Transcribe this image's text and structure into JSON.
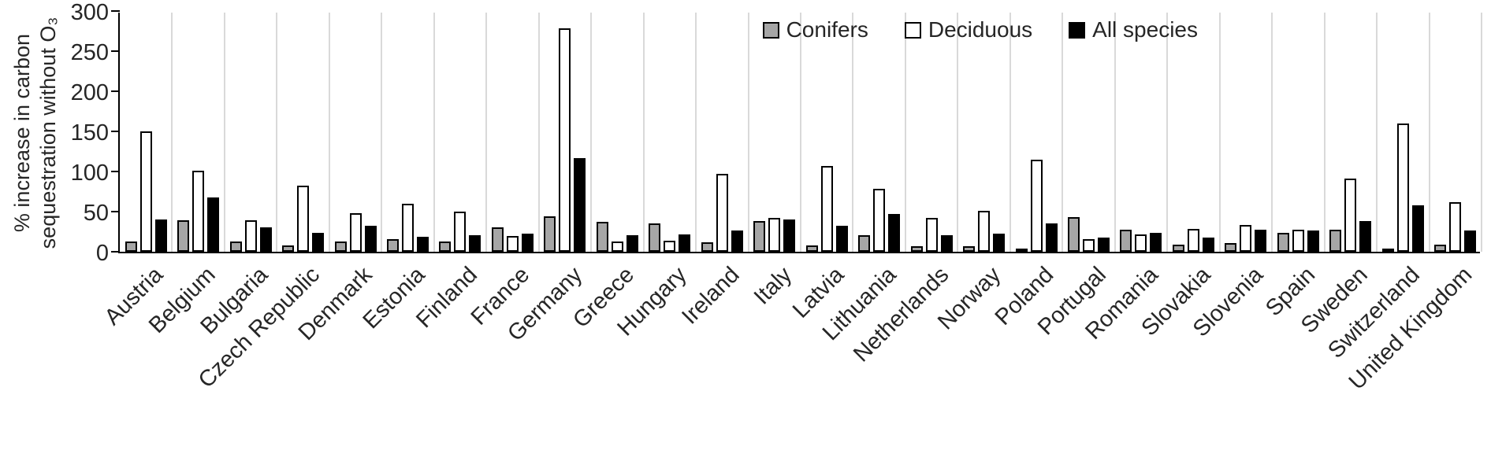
{
  "chart_data": {
    "type": "bar",
    "title": "",
    "ylabel": "% increase in carbon sequestration without O₃",
    "xlabel": "",
    "ylim": [
      0,
      300
    ],
    "yticks": [
      0,
      50,
      100,
      150,
      200,
      250,
      300
    ],
    "grid": "vertical separators between categories",
    "legend_position": "top-right",
    "axis_color": "#000000",
    "gridline_color": "#d9d9d9",
    "text_color": "#262626",
    "categories": [
      "Austria",
      "Belgium",
      "Bulgaria",
      "Czech Republic",
      "Denmark",
      "Estonia",
      "Finland",
      "France",
      "Germany",
      "Greece",
      "Hungary",
      "Ireland",
      "Italy",
      "Latvia",
      "Lithuania",
      "Netherlands",
      "Norway",
      "Poland",
      "Portugal",
      "Romania",
      "Slovakia",
      "Slovenia",
      "Spain",
      "Sweden",
      "Switzerland",
      "United Kingdom"
    ],
    "series": [
      {
        "name": "Conifers",
        "fill": "#a6a6a6",
        "border": "#000000",
        "values": [
          13,
          39,
          13,
          8,
          13,
          16,
          13,
          30,
          44,
          37,
          35,
          12,
          38,
          8,
          21,
          7,
          7,
          2,
          43,
          27,
          9,
          11,
          24,
          27,
          4,
          9
        ]
      },
      {
        "name": "Deciduous",
        "fill": "#ffffff",
        "border": "#000000",
        "values": [
          150,
          101,
          39,
          82,
          48,
          60,
          50,
          20,
          278,
          13,
          14,
          97,
          42,
          107,
          78,
          42,
          51,
          115,
          16,
          22,
          28,
          33,
          27,
          91,
          160,
          62
        ]
      },
      {
        "name": "All species",
        "fill": "#000000",
        "border": "#000000",
        "values": [
          40,
          68,
          30,
          24,
          32,
          19,
          21,
          23,
          117,
          21,
          22,
          26,
          40,
          32,
          47,
          21,
          23,
          35,
          18,
          24,
          18,
          27,
          26,
          38,
          58,
          26
        ]
      }
    ]
  }
}
